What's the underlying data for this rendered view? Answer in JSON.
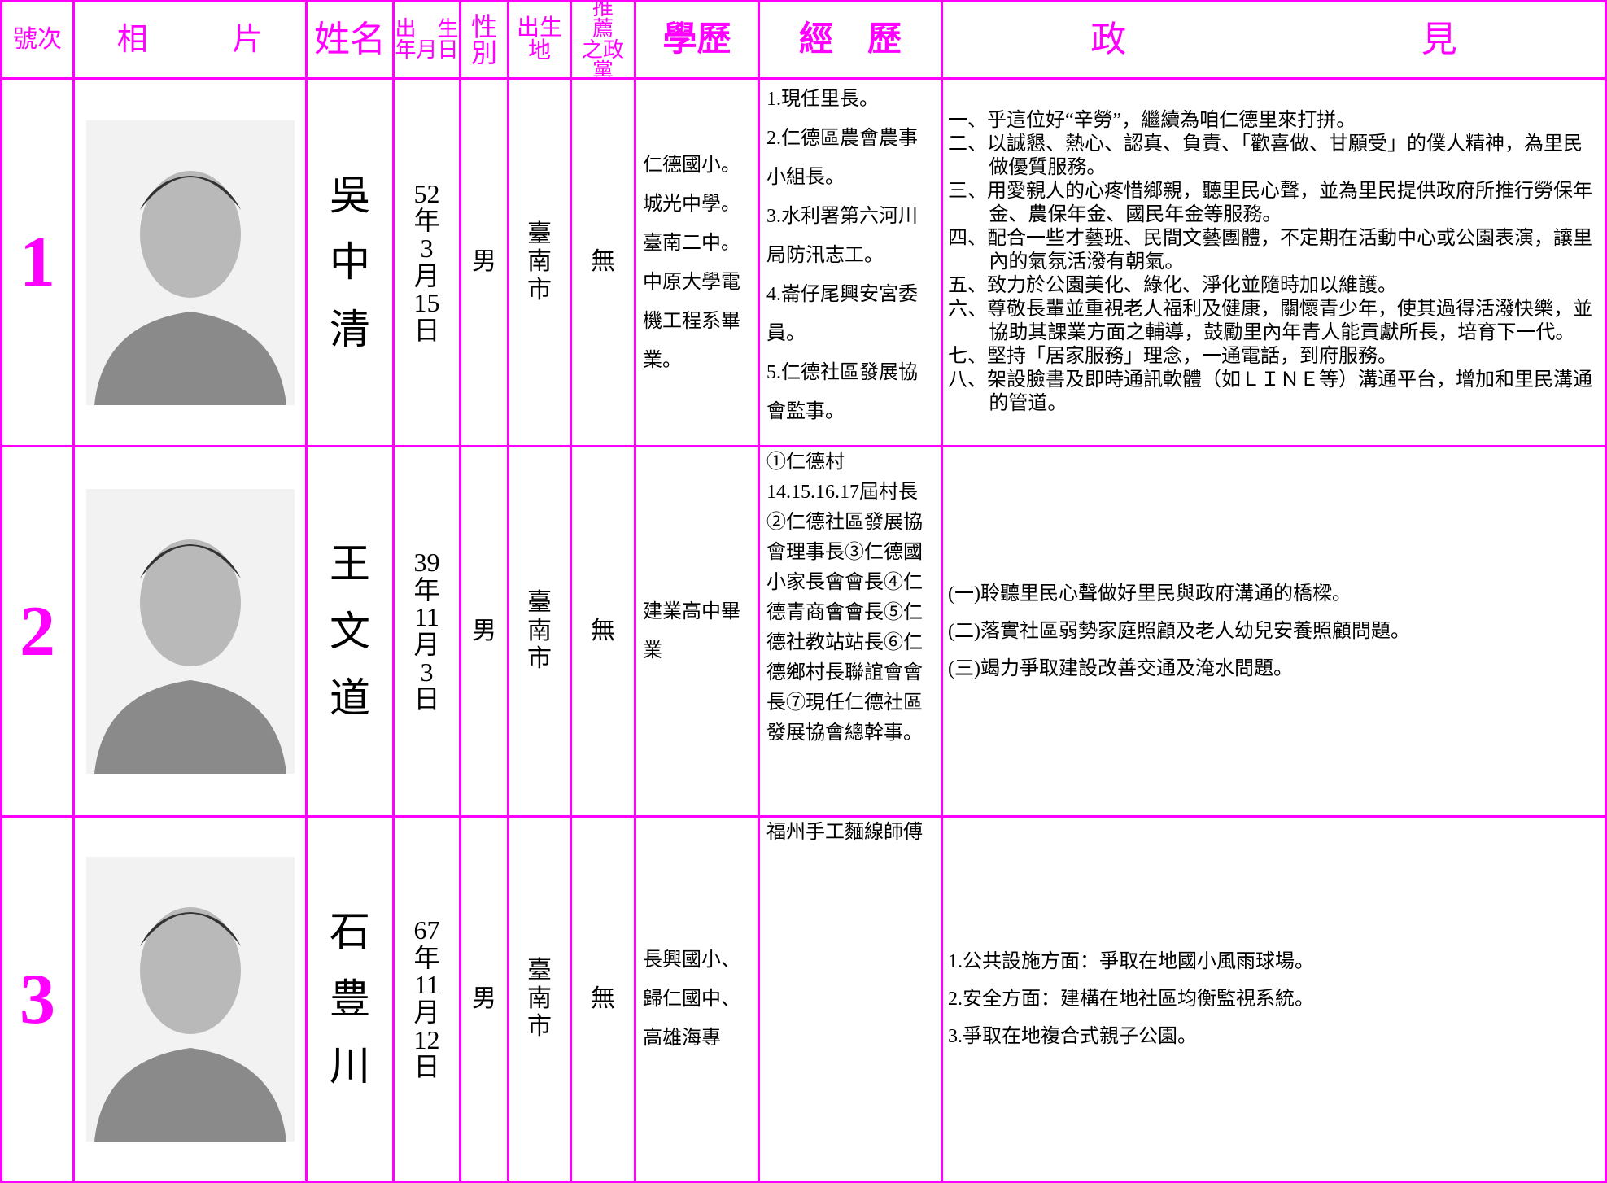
{
  "header": [
    "號次",
    "相",
    "片",
    "姓名",
    "出　生",
    "年月日",
    "性",
    "別",
    "出生地",
    "推　薦",
    "之政黨",
    "學歷",
    "經　歷",
    "政",
    "見"
  ],
  "rows": [
    {
      "number": "1",
      "name": "吳中清",
      "birth": [
        "52",
        "年",
        "3",
        "月",
        "15",
        "日"
      ],
      "gender": "男",
      "birthplace": "臺南市",
      "party": "無",
      "education": "仁德國小。城光中學。臺南二中。中原大學電機工程系畢業。",
      "experience": [
        "1.現任里長。",
        "2.仁德區農會農事小組長。",
        "3.水利署第六河川局防汛志工。",
        "4.崙仔尾興安宮委員。",
        "5.仁德社區發展協會監事。"
      ],
      "platform": [
        "一、乎這位好“辛勞”，繼續為咱仁德里來打拼。",
        "二、以誠懇、熱心、認真、負責、「歡喜做、甘願受」的僕人精神，為里民做優質服務。",
        "三、用愛親人的心疼惜鄉親，聽里民心聲，並為里民提供政府所推行勞保年金、農保年金、國民年金等服務。",
        "四、配合一些才藝班、民間文藝團體，不定期在活動中心或公園表演，讓里內的氣氛活潑有朝氣。",
        "五、致力於公園美化、綠化、淨化並隨時加以維護。",
        "六、尊敬長輩並重視老人福利及健康，關懷青少年，使其過得活潑快樂，並協助其課業方面之輔導，鼓勵里內年青人能貢獻所長，培育下一代。",
        "七、堅持「居家服務」理念，一通電話，到府服務。",
        "八、架設臉書及即時通訊軟體（如ＬＩＮＥ等）溝通平台，增加和里民溝通的管道。"
      ]
    },
    {
      "number": "2",
      "name": "王文道",
      "birth": [
        "39",
        "年",
        "11",
        "月",
        "3",
        "日"
      ],
      "gender": "男",
      "birthplace": "臺南市",
      "party": "無",
      "education": "建業高中畢業",
      "experience": [
        "①仁德村14.15.16.17屆村長②仁德社區發展協會理事長③仁德國小家長會會長④仁德青商會會長⑤仁德社教站站長⑥仁德鄉村長聯誼會會長⑦現任仁德社區發展協會總幹事。"
      ],
      "platform": [
        "(一)聆聽里民心聲做好里民與政府溝通的橋樑。",
        "(二)落實社區弱勢家庭照顧及老人幼兒安養照顧問題。",
        "(三)竭力爭取建設改善交通及淹水問題。"
      ]
    },
    {
      "number": "3",
      "name": "石豊川",
      "birth": [
        "67",
        "年",
        "11",
        "月",
        "12",
        "日"
      ],
      "gender": "男",
      "birthplace": "臺南市",
      "party": "無",
      "education": "長興國小、歸仁國中、高雄海專",
      "experience": [
        "福州手工麵線師傅"
      ],
      "platform": [
        "1.公共設施方面：爭取在地國小風雨球場。",
        "2.安全方面：建構在地社區均衡監視系統。",
        "3.爭取在地複合式親子公園。"
      ]
    }
  ]
}
